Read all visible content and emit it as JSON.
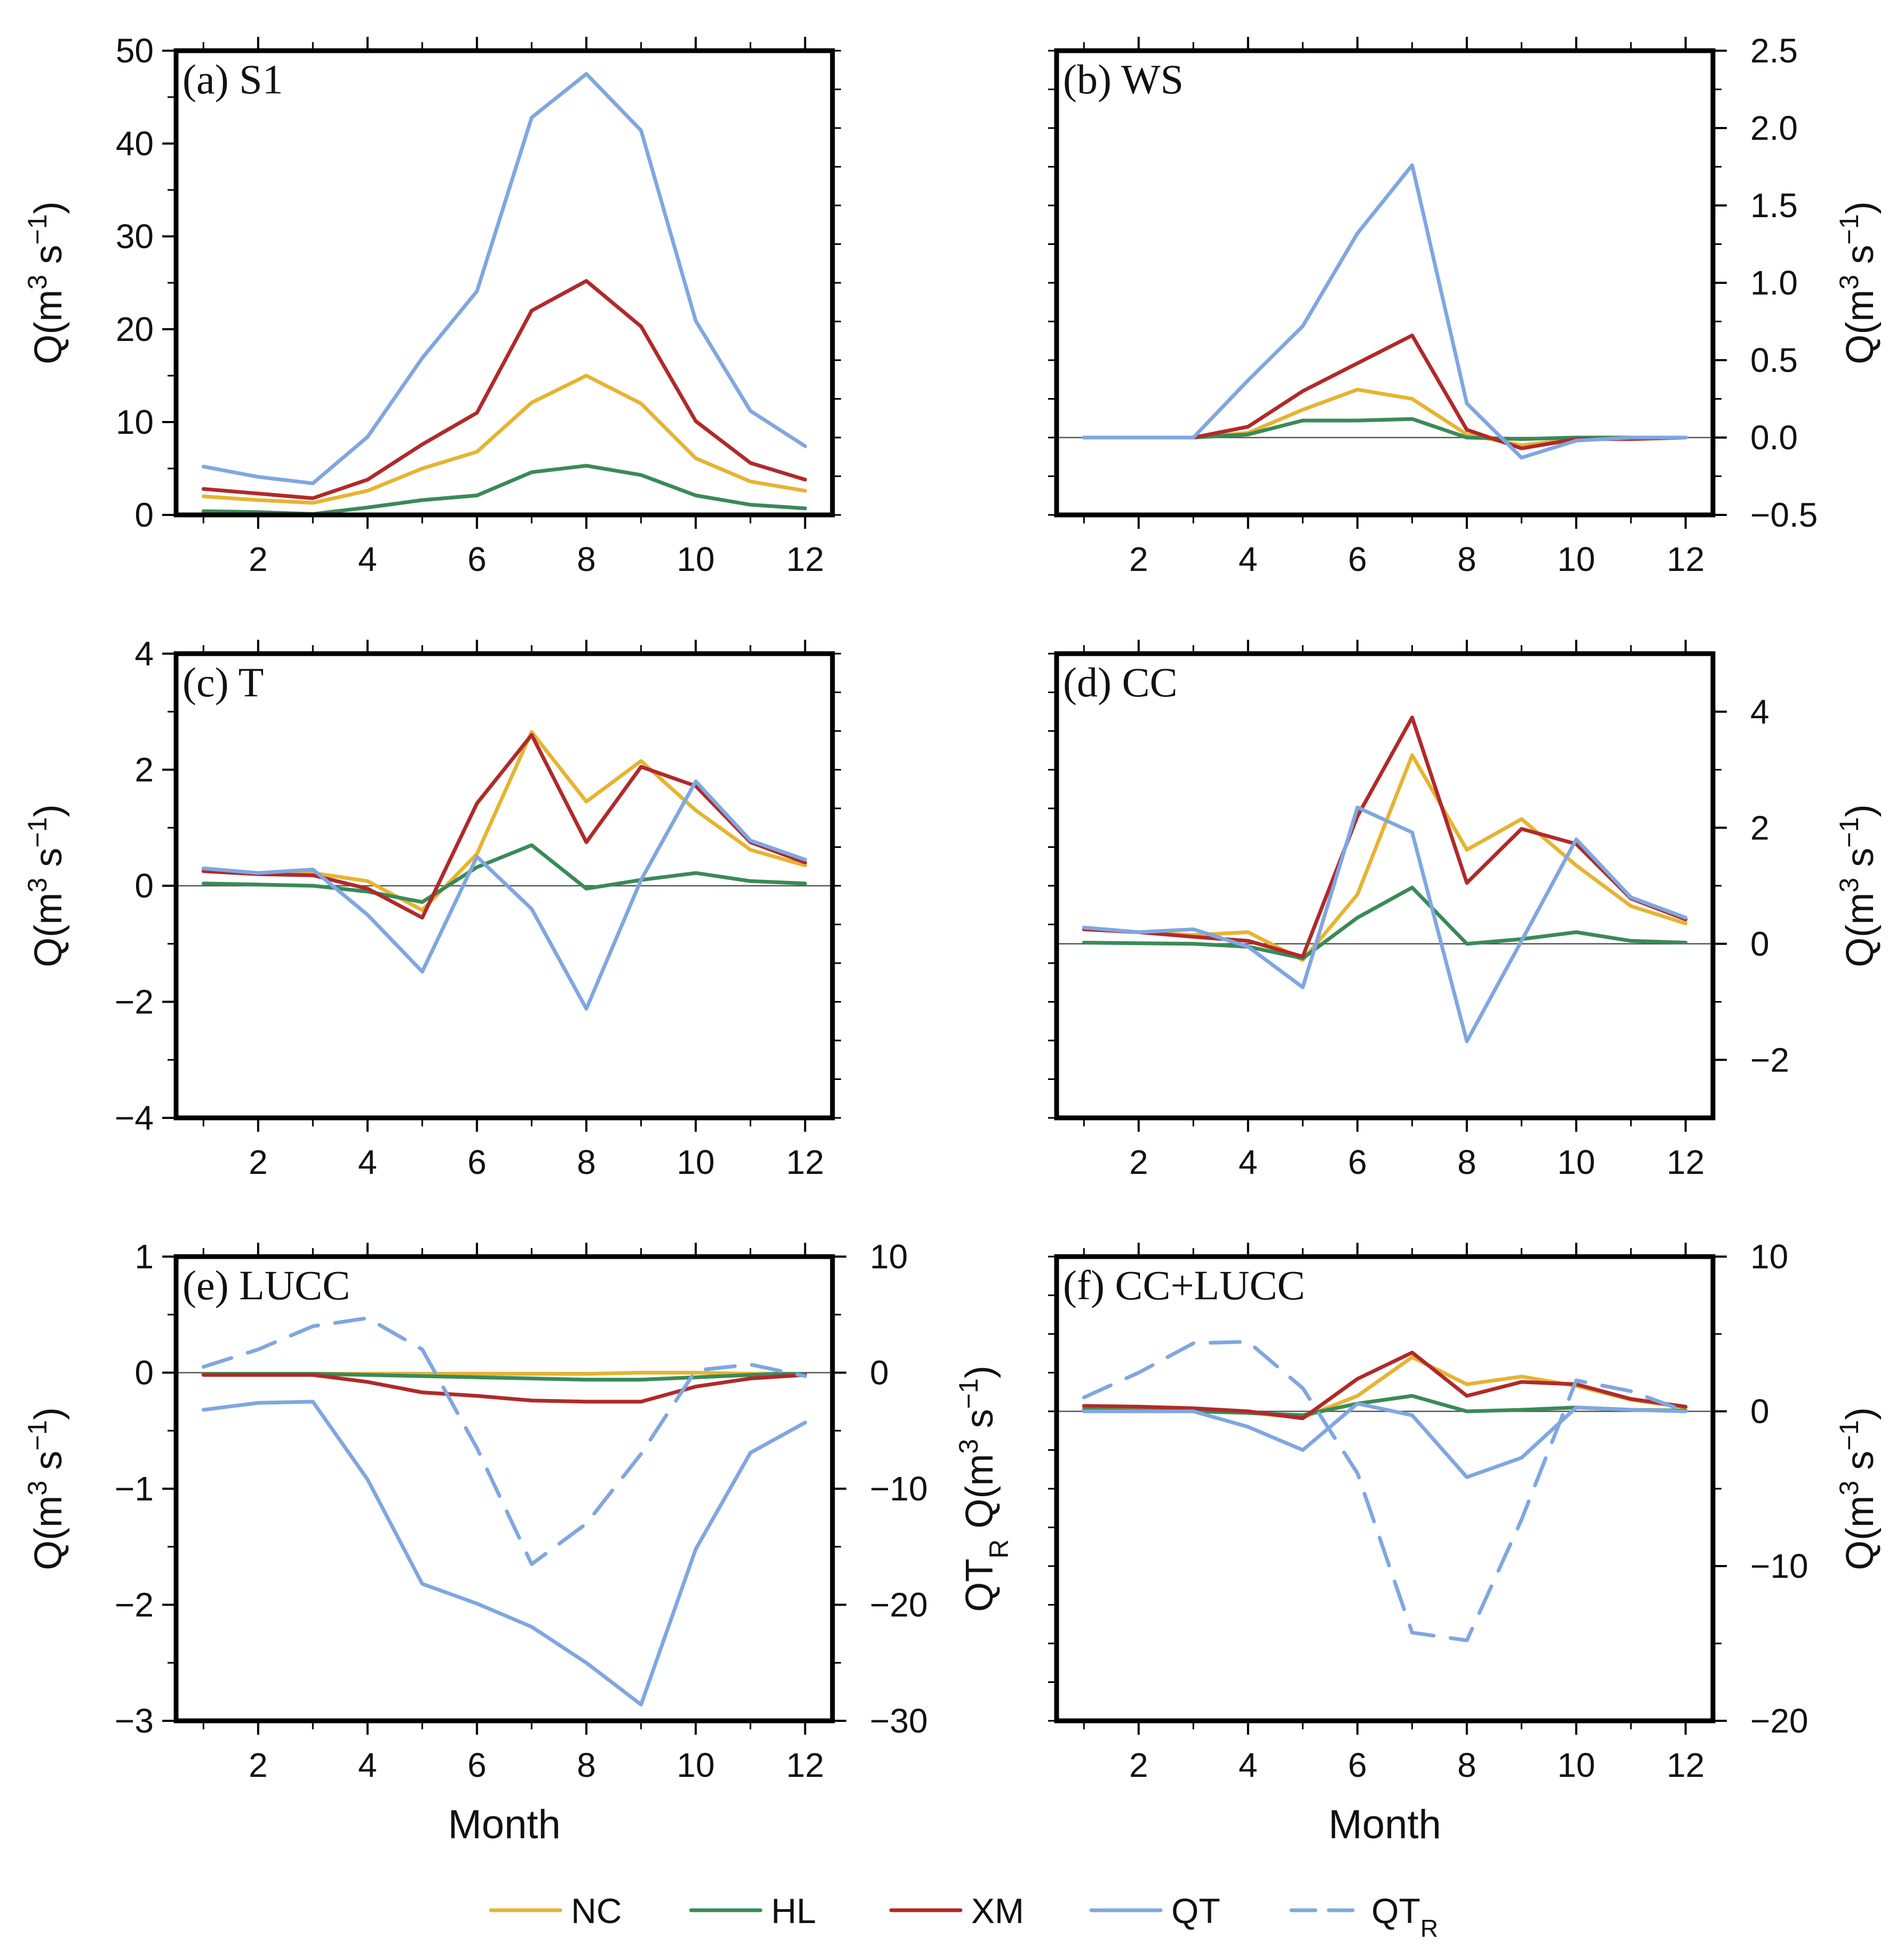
{
  "chart_data": {
    "type": "line",
    "x": [
      1,
      2,
      3,
      4,
      5,
      6,
      7,
      8,
      9,
      10,
      11,
      12
    ],
    "xlabel": "Month",
    "xticks": [
      2,
      4,
      6,
      8,
      10,
      12
    ],
    "colors": {
      "NC": "#E6B432",
      "HL": "#3A8A57",
      "XM": "#B02A2A",
      "QT": "#7FA7E0",
      "QTR": "#7FA7E0"
    },
    "legend": [
      {
        "key": "NC",
        "label": "NC",
        "dashed": false
      },
      {
        "key": "HL",
        "label": "HL",
        "dashed": false
      },
      {
        "key": "XM",
        "label": "XM",
        "dashed": false
      },
      {
        "key": "QT",
        "label": "QT",
        "dashed": false
      },
      {
        "key": "QTR",
        "label": "QT",
        "sub": "R",
        "dashed": true
      }
    ],
    "panels": [
      {
        "id": "a",
        "title": "(a) S1",
        "show_xlabel": false,
        "left_axis": {
          "range": [
            0,
            50
          ],
          "ticks": [
            0,
            10,
            20,
            30,
            40,
            50
          ],
          "tick_labels": [
            "0",
            "10",
            "20",
            "30",
            "40",
            "50"
          ],
          "label": "Q(m",
          "sup": "3",
          "label_tail": " s",
          "sup2": "−1",
          "label_end": ")"
        },
        "right_axis": null,
        "zero_line": false,
        "series": [
          {
            "key": "NC",
            "axis": "left",
            "values": [
              2.0,
              1.6,
              1.3,
              2.6,
              5.0,
              6.8,
              12.1,
              15.0,
              12.0,
              6.1,
              3.6,
              2.6
            ]
          },
          {
            "key": "HL",
            "axis": "left",
            "values": [
              0.4,
              0.3,
              0.1,
              0.8,
              1.6,
              2.1,
              4.6,
              5.3,
              4.3,
              2.1,
              1.1,
              0.7
            ]
          },
          {
            "key": "XM",
            "axis": "left",
            "values": [
              2.8,
              2.3,
              1.8,
              3.8,
              7.6,
              11.0,
              22.0,
              25.2,
              20.3,
              10.1,
              5.6,
              3.8
            ]
          },
          {
            "key": "QT",
            "axis": "left",
            "values": [
              5.2,
              4.1,
              3.4,
              8.4,
              16.9,
              24.1,
              42.8,
              47.5,
              41.4,
              20.9,
              11.2,
              7.4
            ]
          }
        ]
      },
      {
        "id": "b",
        "title": "(b) WS",
        "show_xlabel": false,
        "left_axis": {
          "range": [
            -0.5,
            2.5
          ],
          "ticks": [],
          "tick_labels": [],
          "label": null
        },
        "right_axis": {
          "range": [
            -0.5,
            2.5
          ],
          "ticks": [
            -0.5,
            0,
            0.5,
            1.0,
            1.5,
            2.0,
            2.5
          ],
          "tick_labels": [
            "−0.5",
            "0.0",
            "0.5",
            "1.0",
            "1.5",
            "2.0",
            "2.5"
          ],
          "label": "Q(m",
          "sup": "3",
          "label_tail": " s",
          "sup2": "−1",
          "label_end": ")"
        },
        "zero_line": true,
        "series": [
          {
            "key": "NC",
            "axis": "left",
            "values": [
              0.0,
              0.0,
              0.0,
              0.03,
              0.18,
              0.31,
              0.25,
              0.02,
              -0.05,
              -0.01,
              0.0,
              0.0
            ]
          },
          {
            "key": "HL",
            "axis": "left",
            "values": [
              0.0,
              0.0,
              0.0,
              0.02,
              0.11,
              0.11,
              0.12,
              0.0,
              -0.01,
              0.0,
              0.0,
              0.0
            ]
          },
          {
            "key": "XM",
            "axis": "left",
            "values": [
              0.0,
              0.0,
              0.0,
              0.07,
              0.3,
              0.48,
              0.66,
              0.05,
              -0.07,
              -0.01,
              -0.01,
              0.0
            ]
          },
          {
            "key": "QT",
            "axis": "left",
            "values": [
              0.0,
              0.0,
              0.0,
              0.37,
              0.72,
              1.32,
              1.76,
              0.22,
              -0.13,
              -0.02,
              0.0,
              0.0
            ]
          }
        ]
      },
      {
        "id": "c",
        "title": "(c) T",
        "show_xlabel": false,
        "left_axis": {
          "range": [
            -4,
            4
          ],
          "ticks": [
            -4,
            -2,
            0,
            2,
            4
          ],
          "tick_labels": [
            "−4",
            "−2",
            "0",
            "2",
            "4"
          ],
          "label": "Q(m",
          "sup": "3",
          "label_tail": " s",
          "sup2": "−1",
          "label_end": ")"
        },
        "right_axis": null,
        "zero_line": true,
        "series": [
          {
            "key": "NC",
            "axis": "left",
            "values": [
              0.28,
              0.2,
              0.22,
              0.08,
              -0.42,
              0.55,
              2.65,
              1.45,
              2.15,
              1.3,
              0.62,
              0.35
            ]
          },
          {
            "key": "HL",
            "axis": "left",
            "values": [
              0.04,
              0.02,
              0.0,
              -0.1,
              -0.28,
              0.32,
              0.7,
              -0.05,
              0.1,
              0.22,
              0.08,
              0.04
            ]
          },
          {
            "key": "XM",
            "axis": "left",
            "values": [
              0.25,
              0.2,
              0.18,
              -0.05,
              -0.55,
              1.42,
              2.6,
              0.75,
              2.05,
              1.72,
              0.75,
              0.4
            ]
          },
          {
            "key": "QT",
            "axis": "left",
            "values": [
              0.3,
              0.22,
              0.28,
              -0.5,
              -1.48,
              0.5,
              -0.4,
              -2.12,
              0.1,
              1.8,
              0.78,
              0.45
            ]
          }
        ]
      },
      {
        "id": "d",
        "title": "(d) CC",
        "show_xlabel": false,
        "left_axis": {
          "range": [
            -3,
            5
          ],
          "ticks": [],
          "tick_labels": [],
          "label": null
        },
        "right_axis": {
          "range": [
            -3,
            5
          ],
          "ticks": [
            -2,
            0,
            2,
            4
          ],
          "tick_labels": [
            "−2",
            "0",
            "2",
            "4"
          ],
          "label": "Q(m",
          "sup": "3",
          "label_tail": " s",
          "sup2": "−1",
          "label_end": ")"
        },
        "zero_line": true,
        "series": [
          {
            "key": "NC",
            "axis": "left",
            "values": [
              0.25,
              0.2,
              0.15,
              0.2,
              -0.28,
              0.85,
              3.25,
              1.62,
              2.15,
              1.35,
              0.65,
              0.35
            ]
          },
          {
            "key": "HL",
            "axis": "left",
            "values": [
              0.02,
              0.01,
              0.0,
              -0.05,
              -0.25,
              0.45,
              0.97,
              0.0,
              0.08,
              0.2,
              0.05,
              0.02
            ]
          },
          {
            "key": "XM",
            "axis": "left",
            "values": [
              0.25,
              0.2,
              0.12,
              0.05,
              -0.22,
              2.2,
              3.9,
              1.05,
              1.98,
              1.72,
              0.78,
              0.42
            ]
          },
          {
            "key": "QT",
            "axis": "left",
            "values": [
              0.28,
              0.2,
              0.25,
              -0.05,
              -0.75,
              2.35,
              1.92,
              -1.68,
              0.05,
              1.8,
              0.8,
              0.45
            ]
          }
        ]
      },
      {
        "id": "e",
        "title": "(e) LUCC",
        "show_xlabel": true,
        "left_axis": {
          "range": [
            -3,
            1
          ],
          "ticks": [
            -3,
            -2,
            -1,
            0,
            1
          ],
          "tick_labels": [
            "−3",
            "−2",
            "−1",
            "0",
            "1"
          ],
          "label": "Q(m",
          "sup": "3",
          "label_tail": " s",
          "sup2": "−1",
          "label_end": ")"
        },
        "right_axis": {
          "range": [
            -30,
            10
          ],
          "ticks": [
            -30,
            -20,
            -10,
            0,
            10
          ],
          "tick_labels": [
            "−30",
            "−20",
            "−10",
            "0",
            "10"
          ],
          "label": "QT",
          "sub": "R",
          "label2": " Q(m",
          "sup": "3",
          "label_tail": " s",
          "sup2": "−1",
          "label_end": ")"
        },
        "zero_line": true,
        "series": [
          {
            "key": "NC",
            "axis": "left",
            "values": [
              -0.01,
              -0.01,
              -0.01,
              -0.01,
              -0.01,
              -0.01,
              -0.01,
              -0.01,
              0.0,
              0.0,
              -0.01,
              -0.02
            ]
          },
          {
            "key": "HL",
            "axis": "left",
            "values": [
              -0.01,
              -0.01,
              -0.01,
              -0.02,
              -0.03,
              -0.04,
              -0.05,
              -0.06,
              -0.06,
              -0.04,
              -0.02,
              -0.01
            ]
          },
          {
            "key": "XM",
            "axis": "left",
            "values": [
              -0.02,
              -0.02,
              -0.02,
              -0.08,
              -0.17,
              -0.2,
              -0.24,
              -0.25,
              -0.25,
              -0.12,
              -0.05,
              -0.02
            ]
          },
          {
            "key": "QT",
            "axis": "left",
            "values": [
              -0.32,
              -0.26,
              -0.25,
              -0.92,
              -1.82,
              -1.99,
              -2.19,
              -2.5,
              -2.86,
              -1.52,
              -0.69,
              -0.43
            ]
          },
          {
            "key": "QTR",
            "axis": "right",
            "values": [
              0.5,
              2.0,
              4.0,
              4.7,
              2.0,
              -6.5,
              -16.5,
              -13.0,
              -7.0,
              0.2,
              0.7,
              -0.3
            ]
          }
        ]
      },
      {
        "id": "f",
        "title": "(f) CC+LUCC",
        "show_xlabel": true,
        "left_axis": {
          "range": [
            -4,
            2
          ],
          "ticks": [],
          "tick_labels": [],
          "label": null
        },
        "right_axis": {
          "range": [
            -20,
            10
          ],
          "ticks": [
            -20,
            -10,
            0,
            10
          ],
          "tick_labels": [
            "−20",
            "−10",
            "0",
            "10"
          ],
          "label": "Q(m",
          "sup": "3",
          "label_tail": " s",
          "sup2": "−1",
          "label_end": ")"
        },
        "zero_line": true,
        "series": [
          {
            "key": "NC",
            "axis": "left",
            "values": [
              0.05,
              0.04,
              0.02,
              -0.02,
              -0.08,
              0.2,
              0.7,
              0.35,
              0.45,
              0.33,
              0.15,
              0.05
            ]
          },
          {
            "key": "HL",
            "axis": "left",
            "values": [
              0.02,
              0.01,
              0.0,
              -0.02,
              -0.05,
              0.1,
              0.2,
              0.0,
              0.02,
              0.05,
              0.02,
              0.01
            ]
          },
          {
            "key": "XM",
            "axis": "left",
            "values": [
              0.07,
              0.06,
              0.04,
              0.0,
              -0.09,
              0.42,
              0.76,
              0.2,
              0.38,
              0.35,
              0.16,
              0.06
            ]
          },
          {
            "key": "QT",
            "axis": "left",
            "values": [
              0.0,
              0.0,
              0.0,
              -0.2,
              -0.5,
              0.1,
              -0.05,
              -0.85,
              -0.6,
              0.05,
              0.02,
              0.0
            ]
          },
          {
            "key": "QTR",
            "axis": "right",
            "values": [
              0.9,
              2.5,
              4.4,
              4.5,
              1.5,
              -4.0,
              -14.3,
              -14.8,
              -7.0,
              2.0,
              1.3,
              0.0
            ]
          }
        ]
      }
    ]
  }
}
